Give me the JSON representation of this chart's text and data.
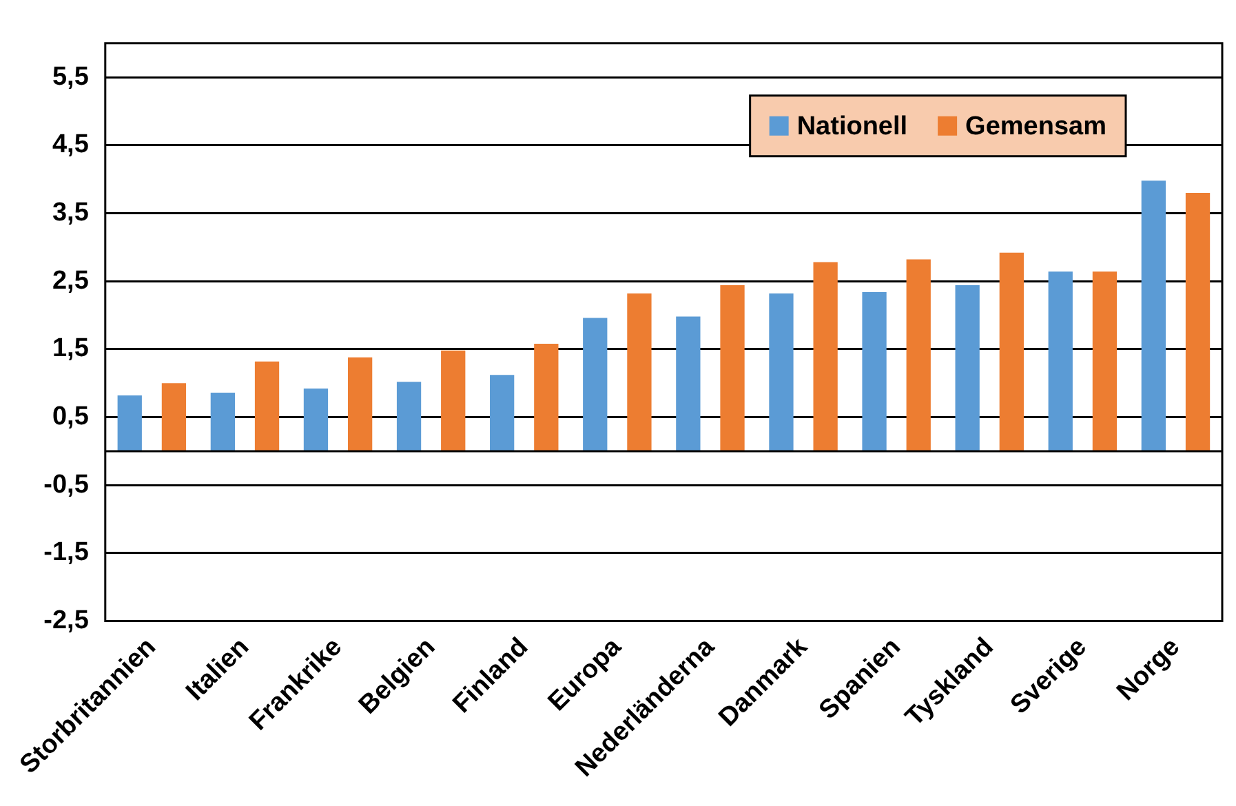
{
  "chart_data": {
    "type": "bar",
    "categories": [
      "Storbritannien",
      "Italien",
      "Frankrike",
      "Belgien",
      "Finland",
      "Europa",
      "Nederländerna",
      "Danmark",
      "Spanien",
      "Tyskland",
      "Sverige",
      "Norge"
    ],
    "series": [
      {
        "name": "Nationell",
        "color": "#5b9bd5",
        "values": [
          0.82,
          0.86,
          0.92,
          1.02,
          1.12,
          1.96,
          1.98,
          2.32,
          2.34,
          2.44,
          2.64,
          3.98
        ]
      },
      {
        "name": "Gemensam",
        "color": "#ed7d31",
        "values": [
          1.0,
          1.32,
          1.38,
          1.48,
          1.58,
          2.32,
          2.44,
          2.78,
          2.82,
          2.92,
          2.64,
          3.8
        ]
      }
    ],
    "ylim": [
      -2.5,
      6
    ],
    "yticks": [
      {
        "value": -2.5,
        "label": "-2,5"
      },
      {
        "value": -1.5,
        "label": "-1,5"
      },
      {
        "value": -0.5,
        "label": "-0,5"
      },
      {
        "value": 0.5,
        "label": "0,5"
      },
      {
        "value": 1.5,
        "label": "1,5"
      },
      {
        "value": 2.5,
        "label": "2,5"
      },
      {
        "value": 3.5,
        "label": "3,5"
      },
      {
        "value": 4.5,
        "label": "4,5"
      },
      {
        "value": 5.5,
        "label": "5,5"
      }
    ],
    "grid": "y",
    "legend": "top right"
  }
}
